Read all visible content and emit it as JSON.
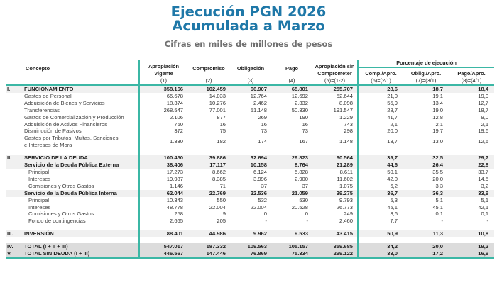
{
  "header": {
    "title_line1": "Ejecución PGN 2026",
    "title_line2": "Acumulada a Marzo",
    "subtitle": "Cifras en miles de millones de pesos"
  },
  "columns": {
    "concepto": "Concepto",
    "c1": "Apropiación Vigente",
    "c1_sub": "(1)",
    "c2": "Compromiso",
    "c2_sub": "(2)",
    "c3": "Obligación",
    "c3_sub": "(3)",
    "c4": "Pago",
    "c4_sub": "(4)",
    "c5": "Apropiación sin Comprometer",
    "c5_sub": "(5)=(1-2)",
    "pct_group": "Porcentaje de ejecución",
    "c6": "Comp./Apro.",
    "c6_sub": "(6)=(2/1)",
    "c7": "Oblig./Apro.",
    "c7_sub": "(7)=(3/1)",
    "c8": "Pago/Apro.",
    "c8_sub": "(8)=(4/1)"
  },
  "rows": [
    {
      "num": "I.",
      "label": "FUNCIONAMIENTO",
      "v": [
        "358.166",
        "102.459",
        "66.907",
        "65.801",
        "255.707",
        "28,6",
        "18,7",
        "18,4"
      ]
    },
    {
      "num": "",
      "label": "Gastos de Personal",
      "v": [
        "66.678",
        "14.033",
        "12.764",
        "12.692",
        "52.644",
        "21,0",
        "19,1",
        "19,0"
      ]
    },
    {
      "num": "",
      "label": "Adquisición de Bienes y Servicios",
      "v": [
        "18.374",
        "10.276",
        "2.462",
        "2.332",
        "8.098",
        "55,9",
        "13,4",
        "12,7"
      ]
    },
    {
      "num": "",
      "label": "Transferencias",
      "v": [
        "268.547",
        "77.001",
        "51.148",
        "50.330",
        "191.547",
        "28,7",
        "19,0",
        "18,7"
      ]
    },
    {
      "num": "",
      "label": "Gastos de Comercialización y Producción",
      "v": [
        "2.106",
        "877",
        "269",
        "190",
        "1.229",
        "41,7",
        "12,8",
        "9,0"
      ]
    },
    {
      "num": "",
      "label": "Adquisición de Activos Financieros",
      "v": [
        "760",
        "16",
        "16",
        "16",
        "743",
        "2,1",
        "2,1",
        "2,1"
      ]
    },
    {
      "num": "",
      "label": "Disminución de Pasivos",
      "v": [
        "372",
        "75",
        "73",
        "73",
        "298",
        "20,0",
        "19,7",
        "19,6"
      ]
    },
    {
      "num": "",
      "label": "Gastos por Tributos, Multas, Sanciones",
      "label2": "e Intereses de Mora",
      "v": [
        "1.330",
        "182",
        "174",
        "167",
        "1.148",
        "13,7",
        "13,0",
        "12,6"
      ]
    },
    {
      "num": "II.",
      "label": "SERVICIO DE LA DEUDA",
      "v": [
        "100.450",
        "39.886",
        "32.694",
        "29.823",
        "60.564",
        "39,7",
        "32,5",
        "29,7"
      ]
    },
    {
      "num": "",
      "label": "Servicio de la Deuda Pública Externa",
      "v": [
        "38.406",
        "17.117",
        "10.158",
        "8.764",
        "21.289",
        "44,6",
        "26,4",
        "22,8"
      ]
    },
    {
      "num": "",
      "label": "Principal",
      "v": [
        "17.273",
        "8.662",
        "6.124",
        "5.828",
        "8.611",
        "50,1",
        "35,5",
        "33,7"
      ]
    },
    {
      "num": "",
      "label": "Intereses",
      "v": [
        "19.987",
        "8.385",
        "3.996",
        "2.900",
        "11.602",
        "42,0",
        "20,0",
        "14,5"
      ]
    },
    {
      "num": "",
      "label": "Comisiones y Otros Gastos",
      "v": [
        "1.146",
        "71",
        "37",
        "37",
        "1.075",
        "6,2",
        "3,3",
        "3,2"
      ]
    },
    {
      "num": "",
      "label": "Servicio de la Deuda Pública Interna",
      "v": [
        "62.044",
        "22.769",
        "22.536",
        "21.059",
        "39.275",
        "36,7",
        "36,3",
        "33,9"
      ]
    },
    {
      "num": "",
      "label": "Principal",
      "v": [
        "10.343",
        "550",
        "532",
        "530",
        "9.793",
        "5,3",
        "5,1",
        "5,1"
      ]
    },
    {
      "num": "",
      "label": "Intereses",
      "v": [
        "48.778",
        "22.004",
        "22.004",
        "20.528",
        "26.773",
        "45,1",
        "45,1",
        "42,1"
      ]
    },
    {
      "num": "",
      "label": "Comisiones y Otros Gastos",
      "v": [
        "258",
        "9",
        "0",
        "0",
        "249",
        "3,6",
        "0,1",
        "0,1"
      ]
    },
    {
      "num": "",
      "label": "Fondo de contingencias",
      "v": [
        "2.665",
        "205",
        "-",
        "-",
        "2.460",
        "7,7",
        "-",
        "-"
      ]
    },
    {
      "num": "III.",
      "label": "INVERSIÓN",
      "v": [
        "88.401",
        "44.986",
        "9.962",
        "9.533",
        "43.415",
        "50,9",
        "11,3",
        "10,8"
      ]
    },
    {
      "num": "IV.",
      "label": "TOTAL (I + II + III)",
      "v": [
        "547.017",
        "187.332",
        "109.563",
        "105.157",
        "359.685",
        "34,2",
        "20,0",
        "19,2"
      ]
    },
    {
      "num": "V.",
      "label": "TOTAL SIN DEUDA (I + III)",
      "v": [
        "446.567",
        "147.446",
        "76.869",
        "75.334",
        "299.122",
        "33,0",
        "17,2",
        "16,9"
      ]
    }
  ],
  "colors": {
    "title": "#1f78a8",
    "accent_line": "#3bb7a5"
  }
}
